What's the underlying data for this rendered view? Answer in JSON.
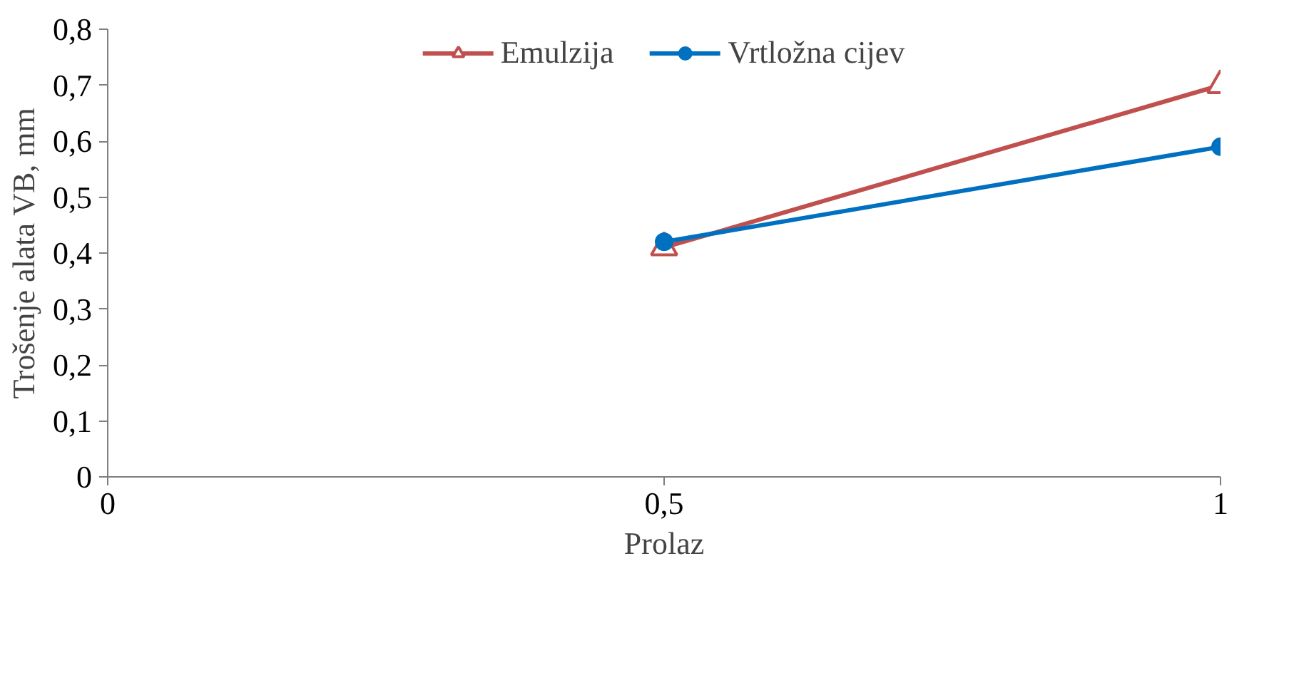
{
  "chart_data": {
    "type": "line",
    "xlabel": "Prolaz",
    "ylabel": "Trošenje alata VB, mm",
    "x": [
      0.5,
      1
    ],
    "series": [
      {
        "name": "Emulzija",
        "color": "#c0504d",
        "values": [
          0.41,
          0.7
        ],
        "marker": "triangle"
      },
      {
        "name": "Vrtložna cijev",
        "color": "#0070c0",
        "values": [
          0.42,
          0.59
        ],
        "marker": "circle"
      }
    ],
    "xlim": [
      0,
      1
    ],
    "xticks": [
      0,
      {
        "value": 0.5,
        "label": "0,5"
      },
      1
    ],
    "ylim": [
      0,
      0.8
    ],
    "yticks": [
      0,
      {
        "value": 0.1,
        "label": "0,1"
      },
      {
        "value": 0.2,
        "label": "0,2"
      },
      {
        "value": 0.3,
        "label": "0,3"
      },
      {
        "value": 0.4,
        "label": "0,4"
      },
      {
        "value": 0.5,
        "label": "0,5"
      },
      {
        "value": 0.6,
        "label": "0,6"
      },
      {
        "value": 0.7,
        "label": "0,7"
      },
      {
        "value": 0.8,
        "label": "0,8"
      }
    ],
    "grid": false,
    "legend": "top",
    "line_style": "solid"
  }
}
